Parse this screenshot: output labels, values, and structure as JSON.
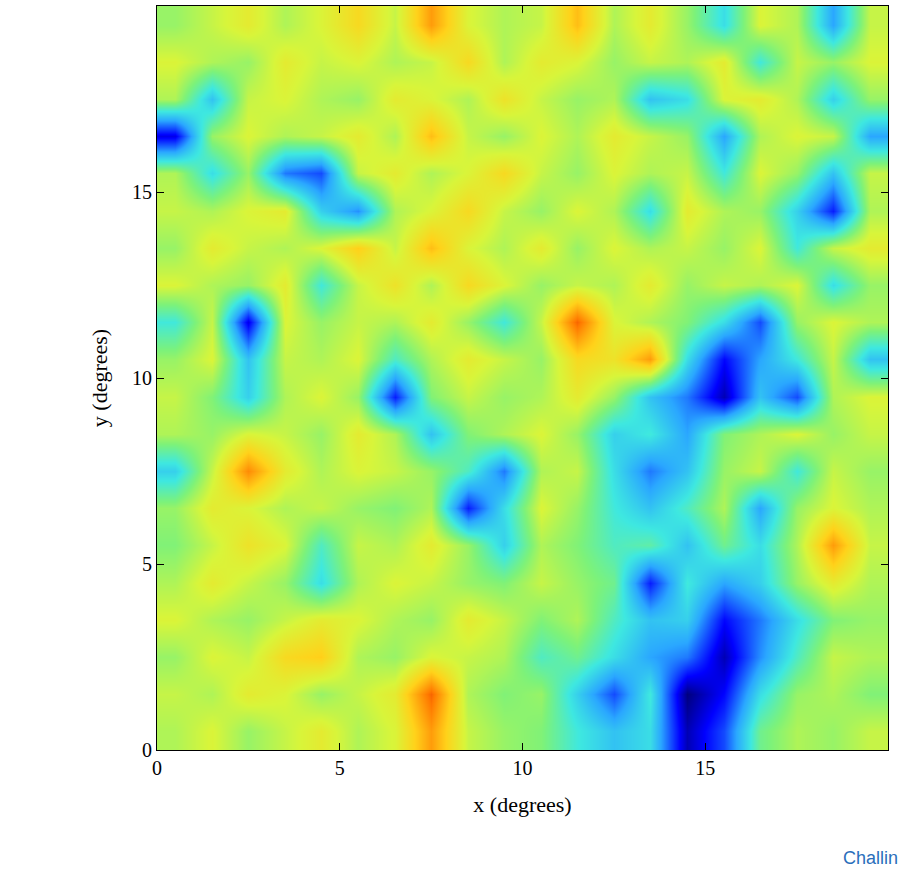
{
  "chart_data": {
    "type": "heatmap",
    "x_label": "x (degrees)",
    "y_label": "y (degrees)",
    "annotations": [
      "Challin"
    ],
    "xlim": [
      0,
      20
    ],
    "ylim": [
      0,
      20
    ],
    "xticks": [
      0,
      5,
      10,
      15
    ],
    "yticks": [
      0,
      5,
      10,
      15
    ],
    "zlim": [
      -2,
      2
    ],
    "x": [
      0.5,
      1.5,
      2.5,
      3.5,
      4.5,
      5.5,
      6.5,
      7.5,
      8.5,
      9.5,
      10.5,
      11.5,
      12.5,
      13.5,
      14.5,
      15.5,
      16.5,
      17.5,
      18.5,
      19.5
    ],
    "y": [
      0.5,
      1.5,
      2.5,
      3.5,
      4.5,
      5.5,
      6.5,
      7.5,
      8.5,
      9.5,
      10.5,
      11.5,
      12.5,
      13.5,
      14.5,
      15.5,
      16.5,
      17.5,
      18.5,
      19.5
    ],
    "z": [
      [
        0.3,
        0.5,
        0.2,
        0.4,
        0.6,
        0.3,
        0.5,
        1.2,
        0.4,
        0.2,
        0.1,
        -0.3,
        -0.6,
        -0.4,
        -1.8,
        -1.2,
        0.0,
        0.3,
        0.2,
        0.4
      ],
      [
        0.4,
        0.3,
        0.6,
        0.5,
        0.2,
        0.4,
        0.6,
        1.5,
        0.3,
        0.1,
        0.2,
        -0.5,
        -1.2,
        -0.3,
        -2.0,
        -1.5,
        -0.4,
        0.2,
        0.3,
        0.1
      ],
      [
        0.2,
        0.5,
        0.4,
        0.8,
        0.9,
        0.3,
        0.2,
        0.5,
        0.4,
        0.3,
        -0.2,
        0.0,
        -0.4,
        -0.8,
        -1.0,
        -1.8,
        -0.9,
        -0.2,
        0.4,
        0.3
      ],
      [
        0.5,
        0.3,
        0.2,
        0.4,
        0.6,
        0.5,
        0.3,
        0.2,
        0.6,
        0.4,
        0.1,
        0.3,
        -0.2,
        -0.6,
        -0.5,
        -1.5,
        -1.0,
        -0.4,
        0.1,
        0.2
      ],
      [
        0.3,
        0.6,
        0.4,
        0.2,
        -0.4,
        0.3,
        0.5,
        0.4,
        0.2,
        0.1,
        0.4,
        0.2,
        0.0,
        -1.4,
        -0.3,
        -0.8,
        -0.5,
        0.2,
        0.6,
        0.3
      ],
      [
        0.1,
        0.4,
        0.7,
        0.5,
        -0.2,
        0.4,
        0.3,
        0.6,
        0.2,
        -0.5,
        0.3,
        0.1,
        -0.2,
        -0.1,
        -0.6,
        0.0,
        -0.4,
        0.3,
        1.2,
        0.4
      ],
      [
        0.2,
        0.6,
        0.5,
        0.3,
        0.4,
        0.2,
        0.1,
        0.3,
        -1.4,
        -0.4,
        0.5,
        0.2,
        -0.3,
        -0.6,
        -0.2,
        0.3,
        -0.8,
        0.2,
        0.5,
        0.3
      ],
      [
        -0.5,
        0.4,
        1.3,
        0.6,
        0.3,
        0.5,
        0.4,
        0.2,
        -0.2,
        -1.0,
        0.3,
        0.4,
        -0.4,
        -1.0,
        -0.6,
        0.2,
        0.4,
        -0.3,
        0.4,
        0.2
      ],
      [
        0.3,
        0.2,
        0.5,
        0.4,
        0.2,
        0.6,
        0.3,
        -0.6,
        0.1,
        0.3,
        0.5,
        0.2,
        -0.5,
        -0.3,
        -0.8,
        0.1,
        0.3,
        0.5,
        0.2,
        0.4
      ],
      [
        0.4,
        0.1,
        -0.5,
        0.3,
        0.5,
        0.2,
        -1.4,
        0.1,
        0.4,
        0.2,
        0.3,
        0.6,
        0.2,
        -0.6,
        -1.0,
        -1.8,
        -0.6,
        -1.2,
        0.3,
        0.5
      ],
      [
        0.2,
        0.5,
        -0.6,
        0.4,
        0.3,
        0.5,
        -0.2,
        0.3,
        0.6,
        0.4,
        0.2,
        0.8,
        0.7,
        1.2,
        -0.4,
        -1.5,
        -0.8,
        -0.3,
        0.4,
        -0.6
      ],
      [
        -0.3,
        0.4,
        -1.6,
        0.5,
        0.2,
        0.4,
        0.3,
        0.6,
        0.2,
        -0.3,
        0.4,
        1.5,
        0.5,
        0.3,
        0.1,
        -0.4,
        -1.2,
        0.2,
        0.5,
        0.3
      ],
      [
        0.5,
        0.3,
        0.2,
        0.6,
        -0.3,
        0.4,
        0.7,
        0.3,
        0.8,
        0.5,
        0.2,
        0.4,
        0.3,
        0.6,
        0.2,
        0.4,
        0.3,
        0.5,
        -0.4,
        0.2
      ],
      [
        0.2,
        0.6,
        0.4,
        0.3,
        0.5,
        0.9,
        0.4,
        1.0,
        0.5,
        0.3,
        0.6,
        0.2,
        0.5,
        0.3,
        0.4,
        0.2,
        0.5,
        -0.3,
        0.4,
        0.6
      ],
      [
        0.4,
        0.3,
        0.5,
        0.6,
        -0.5,
        -0.9,
        0.3,
        0.5,
        0.8,
        0.4,
        0.2,
        0.5,
        0.3,
        -0.4,
        0.6,
        0.3,
        0.2,
        -0.5,
        -1.4,
        0.3
      ],
      [
        0.3,
        -0.4,
        0.2,
        -1.0,
        -1.2,
        0.4,
        0.6,
        0.3,
        0.5,
        0.8,
        0.4,
        0.2,
        0.5,
        0.3,
        0.4,
        -0.3,
        0.5,
        0.2,
        -0.6,
        0.4
      ],
      [
        -1.6,
        0.2,
        0.5,
        0.3,
        0.4,
        0.6,
        0.3,
        1.0,
        0.4,
        0.2,
        0.5,
        0.3,
        0.6,
        0.4,
        0.2,
        -0.8,
        0.3,
        0.5,
        0.4,
        -0.8
      ],
      [
        0.3,
        -0.6,
        0.4,
        0.5,
        0.3,
        0.2,
        0.6,
        0.5,
        0.3,
        0.7,
        0.4,
        0.2,
        0.3,
        -0.6,
        -0.4,
        0.5,
        0.6,
        0.3,
        -0.5,
        0.2
      ],
      [
        0.5,
        0.3,
        0.2,
        0.6,
        0.4,
        0.5,
        0.3,
        0.4,
        0.8,
        0.3,
        0.6,
        0.5,
        0.2,
        0.4,
        0.3,
        0.6,
        -0.3,
        0.4,
        0.2,
        0.5
      ],
      [
        0.2,
        0.4,
        0.6,
        0.3,
        0.5,
        0.8,
        0.4,
        1.2,
        0.5,
        0.3,
        0.4,
        1.0,
        0.3,
        0.6,
        0.2,
        -0.4,
        0.5,
        0.3,
        -0.8,
        0.4
      ]
    ]
  }
}
